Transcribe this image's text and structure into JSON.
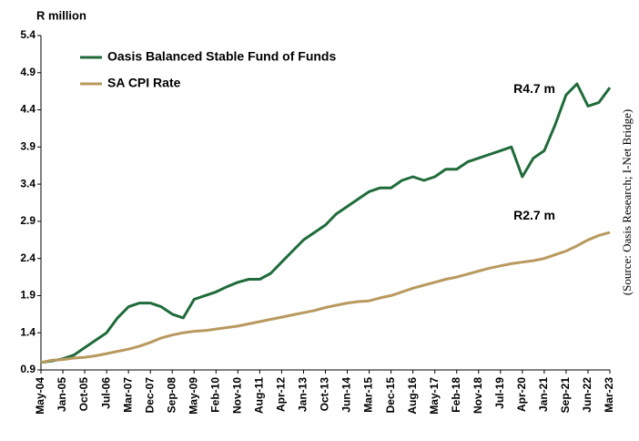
{
  "chart_data": {
    "type": "line",
    "y_label": "R million",
    "source": "(Source: Oasis Research; I-Net Bridge)",
    "categories": [
      "May-04",
      null,
      "Jan-05",
      null,
      "Oct-05",
      null,
      "Jul-06",
      null,
      "Mar-07",
      null,
      "Dec-07",
      null,
      "Sep-08",
      null,
      "May-09",
      null,
      "Feb-10",
      null,
      "Nov-10",
      null,
      "Aug-11",
      null,
      "Apr-12",
      null,
      "Jan-13",
      null,
      "Oct-13",
      null,
      "Jun-14",
      null,
      "Mar-15",
      null,
      "Dec-15",
      null,
      "Aug-16",
      null,
      "May-17",
      null,
      "Feb-18",
      null,
      "Nov-18",
      null,
      "Jul-19",
      null,
      "Apr-20",
      null,
      "Jan-21",
      null,
      "Sep-21",
      null,
      "Jun-22",
      null,
      "Mar-23"
    ],
    "series": [
      {
        "name": "Oasis Balanced Stable Fund of Funds",
        "color": "#1f6b3a",
        "legend_color": "#1f7a3a",
        "values": [
          1.0,
          1.02,
          1.05,
          1.1,
          1.2,
          1.3,
          1.4,
          1.6,
          1.75,
          1.8,
          1.8,
          1.75,
          1.65,
          1.6,
          1.85,
          1.9,
          1.95,
          2.02,
          2.08,
          2.12,
          2.12,
          2.2,
          2.35,
          2.5,
          2.65,
          2.75,
          2.85,
          3.0,
          3.1,
          3.2,
          3.3,
          3.35,
          3.35,
          3.45,
          3.5,
          3.45,
          3.5,
          3.6,
          3.6,
          3.7,
          3.75,
          3.8,
          3.85,
          3.9,
          3.5,
          3.75,
          3.85,
          4.2,
          4.6,
          4.75,
          4.45,
          4.5,
          4.7
        ]
      },
      {
        "name": "SA CPI Rate",
        "color": "#b8995e",
        "legend_color": "#c4a21a",
        "values": [
          1.0,
          1.03,
          1.04,
          1.06,
          1.07,
          1.09,
          1.12,
          1.15,
          1.18,
          1.22,
          1.27,
          1.33,
          1.37,
          1.4,
          1.42,
          1.43,
          1.45,
          1.47,
          1.49,
          1.52,
          1.55,
          1.58,
          1.61,
          1.64,
          1.67,
          1.7,
          1.74,
          1.77,
          1.8,
          1.82,
          1.83,
          1.87,
          1.9,
          1.95,
          2.0,
          2.04,
          2.08,
          2.12,
          2.15,
          2.19,
          2.23,
          2.27,
          2.3,
          2.33,
          2.35,
          2.37,
          2.4,
          2.45,
          2.5,
          2.57,
          2.65,
          2.71,
          2.75
        ]
      }
    ],
    "annotations": [
      {
        "text": "R4.7 m",
        "color": "#2f7d3a"
      },
      {
        "text": "R2.7 m",
        "color": "#c4a21a"
      }
    ],
    "ylim": [
      0.9,
      5.4
    ],
    "yticks": [
      0.9,
      1.4,
      1.9,
      2.4,
      2.9,
      3.4,
      3.9,
      4.4,
      4.9,
      5.4
    ],
    "grid": false
  }
}
